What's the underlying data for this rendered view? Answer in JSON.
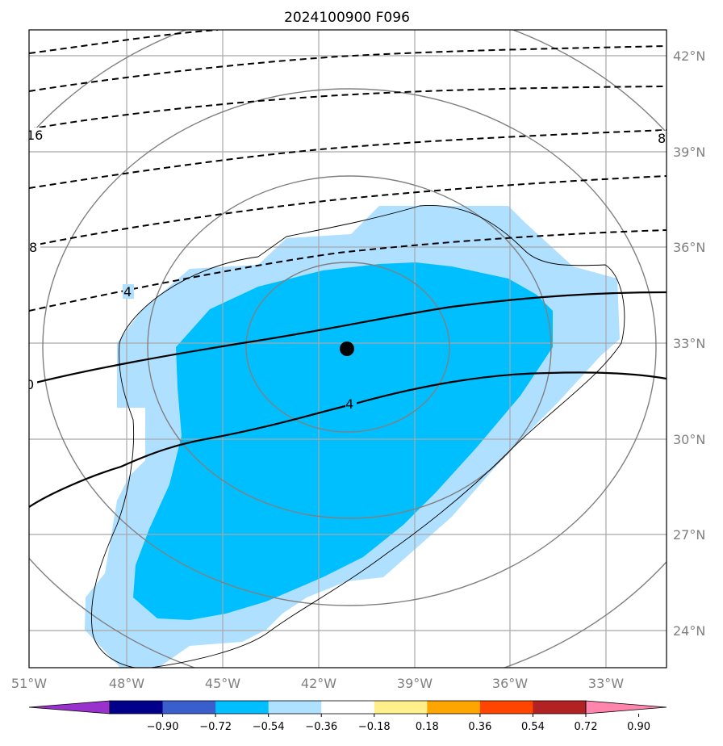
{
  "title": "2024100900 F096",
  "map": {
    "lon_labels": [
      "51°W",
      "48°W",
      "45°W",
      "42°W",
      "39°W",
      "36°W",
      "33°W"
    ],
    "lat_labels": [
      "42°N",
      "39°N",
      "36°N",
      "33°N",
      "30°N",
      "27°N",
      "24°N"
    ],
    "center_marker": "storm-center-dot",
    "contour_labels": [
      "16",
      "8",
      "8",
      "4",
      "0",
      "4"
    ],
    "shading_colors": {
      "light_blue": "#b0e0ff",
      "deep_sky_blue": "#00bfff"
    }
  },
  "colorbar": {
    "tick_labels": [
      "−0.90",
      "−0.72",
      "−0.54",
      "−0.36",
      "−0.18",
      "0.18",
      "0.36",
      "0.54",
      "0.72",
      "0.90"
    ],
    "colors": [
      "#9932cc",
      "#00008b",
      "#3a5fcd",
      "#00bfff",
      "#b0e0ff",
      "#ffffff",
      "#fff08c",
      "#ffa500",
      "#ff4500",
      "#b22222",
      "#ff85ad"
    ]
  }
}
